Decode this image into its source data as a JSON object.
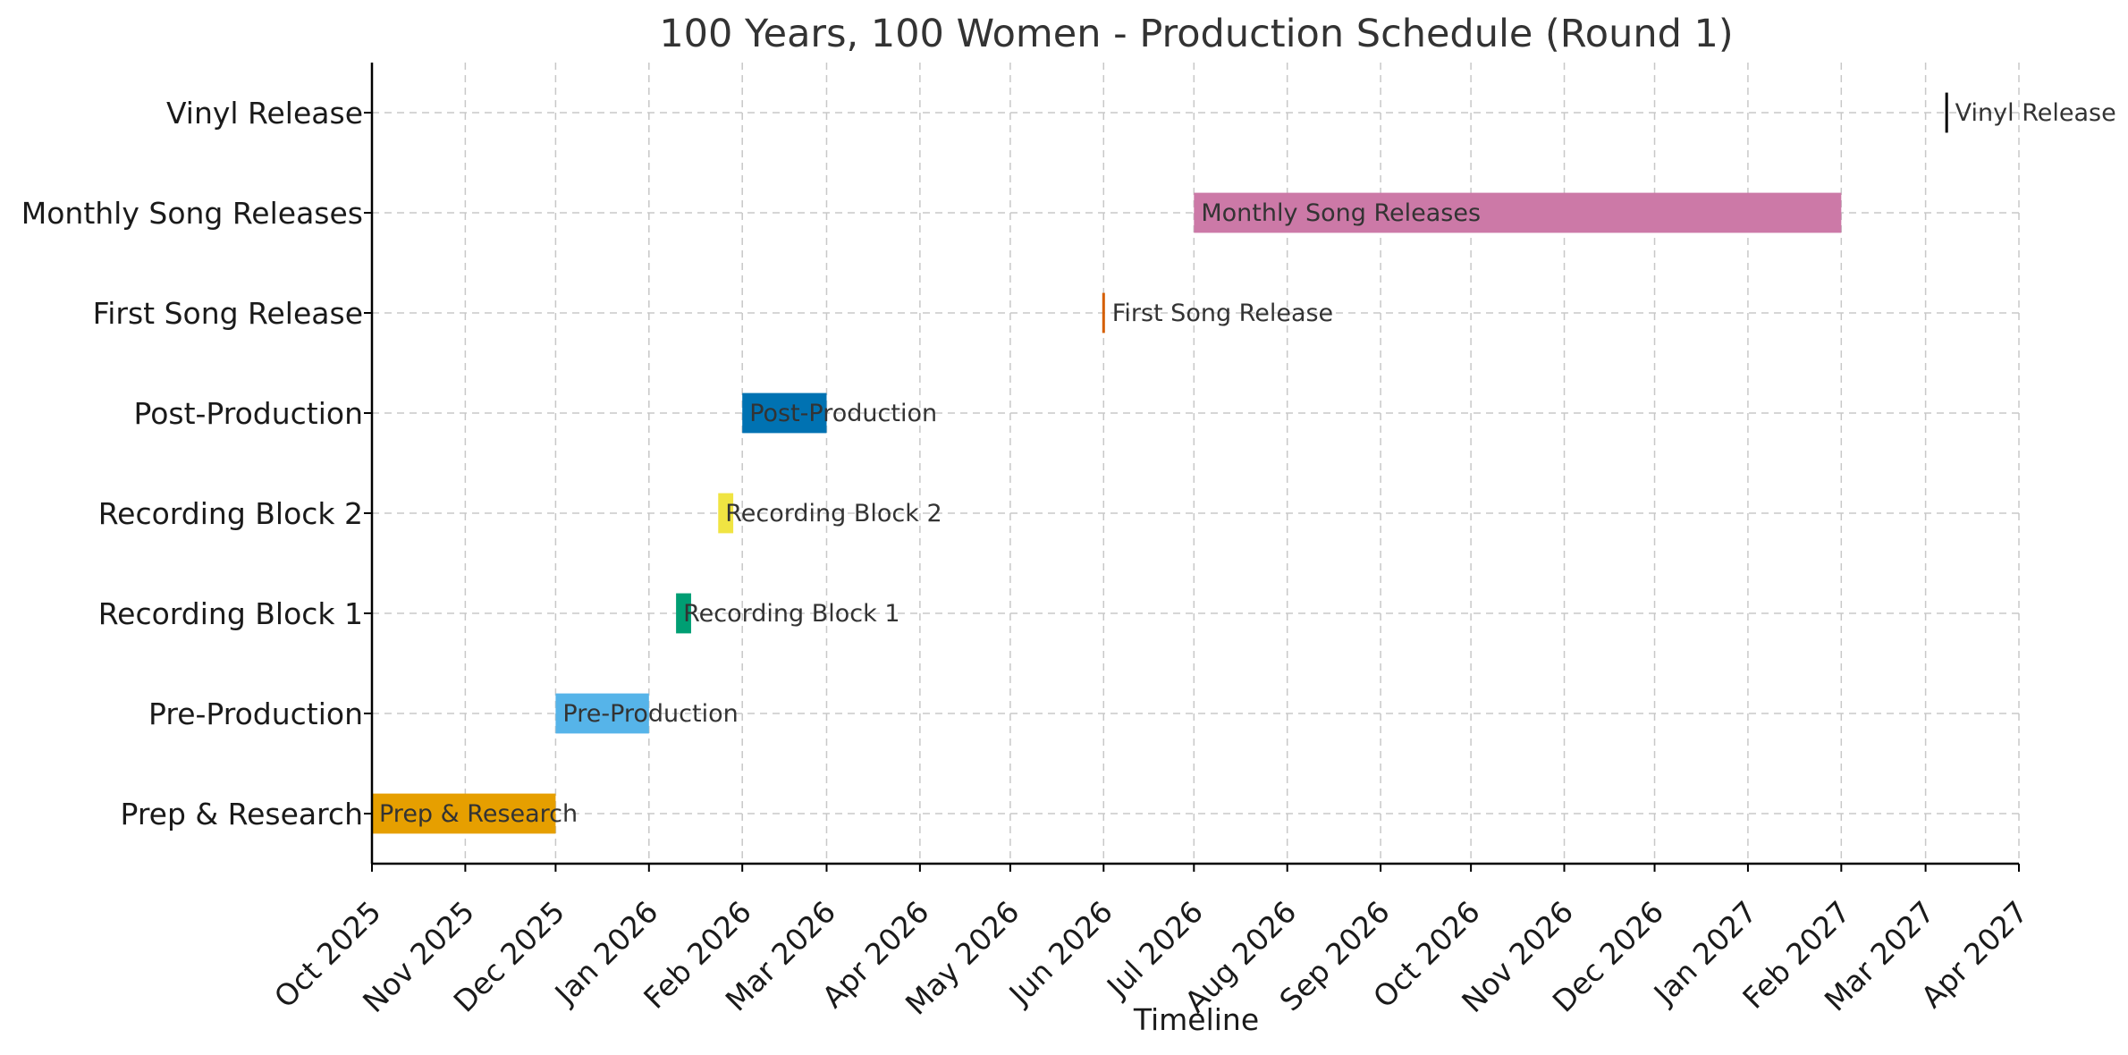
{
  "chart_data": {
    "type": "gantt",
    "title": "100 Years, 100 Women - Production Schedule (Round 1)",
    "xlabel": "Timeline",
    "ylabel": "",
    "grid": true,
    "x_range": [
      "2025-10-01",
      "2027-04-01"
    ],
    "x_ticks": [
      "Oct 2025",
      "Nov 2025",
      "Dec 2025",
      "Jan 2026",
      "Feb 2026",
      "Mar 2026",
      "Apr 2026",
      "May 2026",
      "Jun 2026",
      "Jul 2026",
      "Aug 2026",
      "Sep 2026",
      "Oct 2026",
      "Nov 2026",
      "Dec 2026",
      "Jan 2027",
      "Feb 2027",
      "Mar 2027",
      "Apr 2027"
    ],
    "x_tick_dates": [
      "2025-10-01",
      "2025-11-01",
      "2025-12-01",
      "2026-01-01",
      "2026-02-01",
      "2026-03-01",
      "2026-04-01",
      "2026-05-01",
      "2026-06-01",
      "2026-07-01",
      "2026-08-01",
      "2026-09-01",
      "2026-10-01",
      "2026-11-01",
      "2026-12-01",
      "2027-01-01",
      "2027-02-01",
      "2027-03-01",
      "2027-04-01"
    ],
    "tasks": [
      {
        "name": "Prep & Research",
        "start": "2025-10-01",
        "end": "2025-12-01",
        "color": "#E69F00"
      },
      {
        "name": "Pre-Production",
        "start": "2025-12-01",
        "end": "2026-01-01",
        "color": "#56B4E9"
      },
      {
        "name": "Recording Block 1",
        "start": "2026-01-10",
        "end": "2026-01-15",
        "color": "#009E73"
      },
      {
        "name": "Recording Block 2",
        "start": "2026-01-24",
        "end": "2026-01-29",
        "color": "#F0E442"
      },
      {
        "name": "Post-Production",
        "start": "2026-02-01",
        "end": "2026-03-01",
        "color": "#0072B2"
      },
      {
        "name": "First Song Release",
        "start": "2026-06-01",
        "end": "2026-06-01",
        "color": "#D55E00"
      },
      {
        "name": "Monthly Song Releases",
        "start": "2026-07-01",
        "end": "2027-02-01",
        "color": "#CC79A7"
      },
      {
        "name": "Vinyl Release",
        "start": "2027-03-08",
        "end": "2027-03-08",
        "color": "#000000"
      }
    ]
  }
}
